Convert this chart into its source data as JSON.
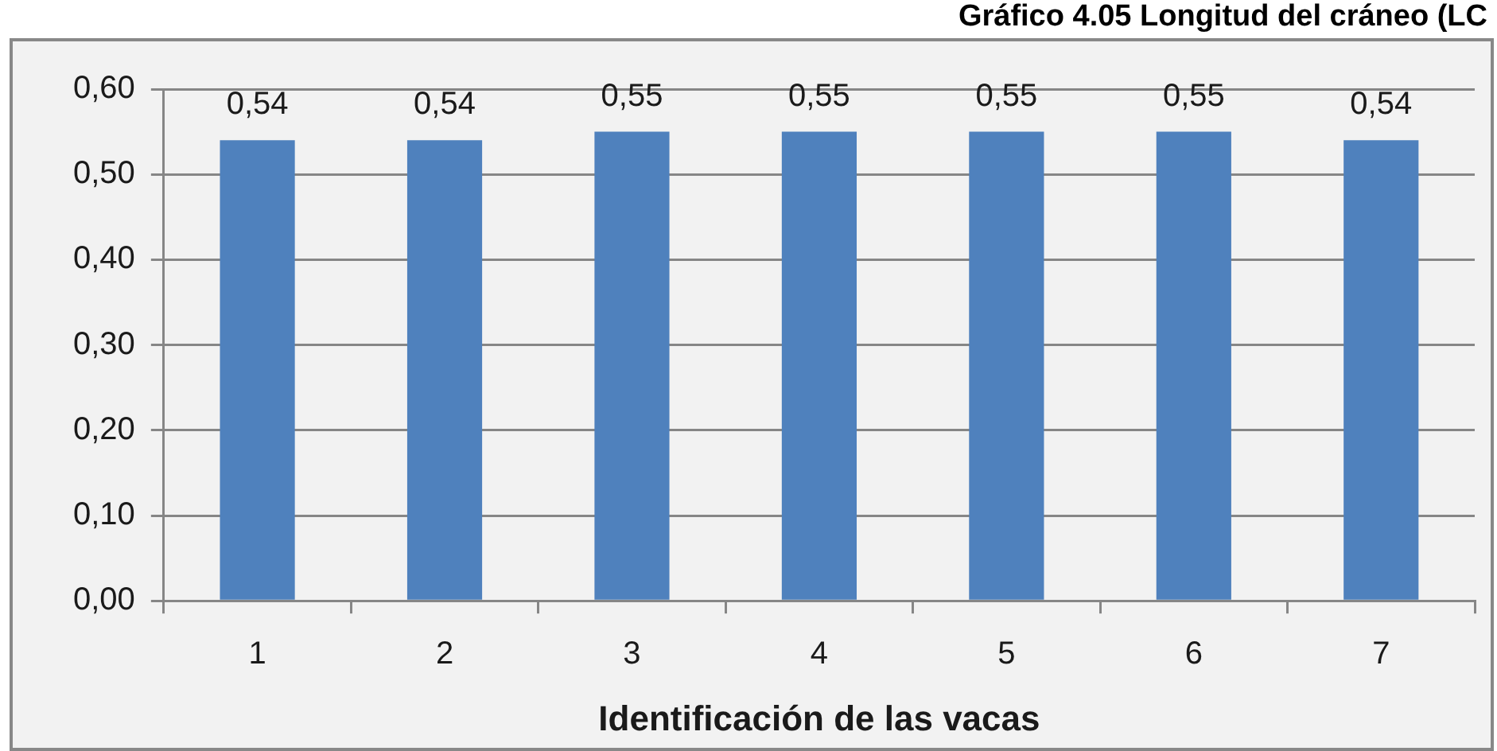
{
  "chart_data": {
    "type": "bar",
    "title": "Gráfico 4.05 Longitud del cráneo (LC",
    "xlabel": "Identificación de las vacas",
    "categories": [
      "1",
      "2",
      "3",
      "4",
      "5",
      "6",
      "7"
    ],
    "values": [
      0.54,
      0.54,
      0.55,
      0.55,
      0.55,
      0.55,
      0.54
    ],
    "value_labels": [
      "0,54",
      "0,54",
      "0,55",
      "0,55",
      "0,55",
      "0,55",
      "0,54"
    ],
    "color": "#4f81bd",
    "ylim": [
      0,
      0.6
    ],
    "yticks": [
      {
        "value": 0,
        "label": "0,00"
      },
      {
        "value": 0.1,
        "label": "0,10"
      },
      {
        "value": 0.2,
        "label": "0,20"
      },
      {
        "value": 0.3,
        "label": "0,30"
      },
      {
        "value": 0.4,
        "label": "0,40"
      },
      {
        "value": 0.5,
        "label": "0,50"
      },
      {
        "value": 0.6,
        "label": "0,60"
      }
    ],
    "grid": "y"
  }
}
